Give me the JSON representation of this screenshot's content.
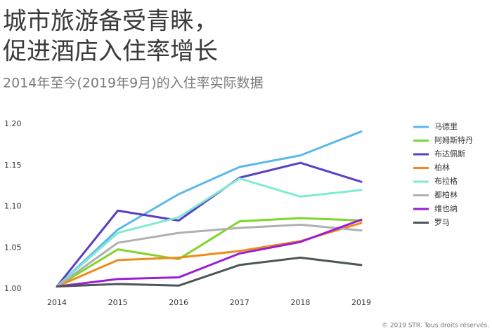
{
  "chart_data": {
    "type": "line",
    "title": [
      "城市旅游备受青睐，",
      "促进酒店入住率增长"
    ],
    "subtitle": "2014年至今(2019年9月)的入住率实际数据",
    "source": "© 2019 STR. Tous droits réservés.",
    "categories": [
      "2014",
      "2015",
      "2016",
      "2017",
      "2018",
      "2019"
    ],
    "ylim": [
      1.0,
      1.2
    ],
    "yticks": [
      {
        "value": 1.0,
        "label": "1.00"
      },
      1.05,
      {
        "value": 1.1,
        "label": "1.10"
      },
      1.15,
      {
        "value": 1.2,
        "label": "1.20"
      }
    ],
    "grid": false,
    "series": [
      {
        "name": "马德里",
        "color": "#5cb8ea",
        "values": [
          1.003,
          1.072,
          1.115,
          1.148,
          1.162,
          1.191
        ]
      },
      {
        "name": "阿姆斯特丹",
        "color": "#7ed62a",
        "values": [
          1.003,
          1.048,
          1.036,
          1.082,
          1.086,
          1.083
        ]
      },
      {
        "name": "布达佩斯",
        "color": "#5a3fc6",
        "values": [
          1.003,
          1.095,
          1.083,
          1.135,
          1.153,
          1.13
        ]
      },
      {
        "name": "柏林",
        "color": "#f28a1a",
        "values": [
          1.003,
          1.035,
          1.038,
          1.046,
          1.058,
          1.08
        ]
      },
      {
        "name": "布拉格",
        "color": "#80ead2",
        "values": [
          1.003,
          1.068,
          1.087,
          1.134,
          1.112,
          1.12
        ]
      },
      {
        "name": "都柏林",
        "color": "#b0b0b0",
        "values": [
          1.003,
          1.056,
          1.068,
          1.074,
          1.078,
          1.071
        ]
      },
      {
        "name": "维也纳",
        "color": "#9a1ed6",
        "values": [
          1.003,
          1.012,
          1.014,
          1.043,
          1.057,
          1.084
        ]
      },
      {
        "name": "罗马",
        "color": "#4d5557",
        "values": [
          1.003,
          1.006,
          1.004,
          1.029,
          1.038,
          1.029
        ]
      }
    ]
  }
}
